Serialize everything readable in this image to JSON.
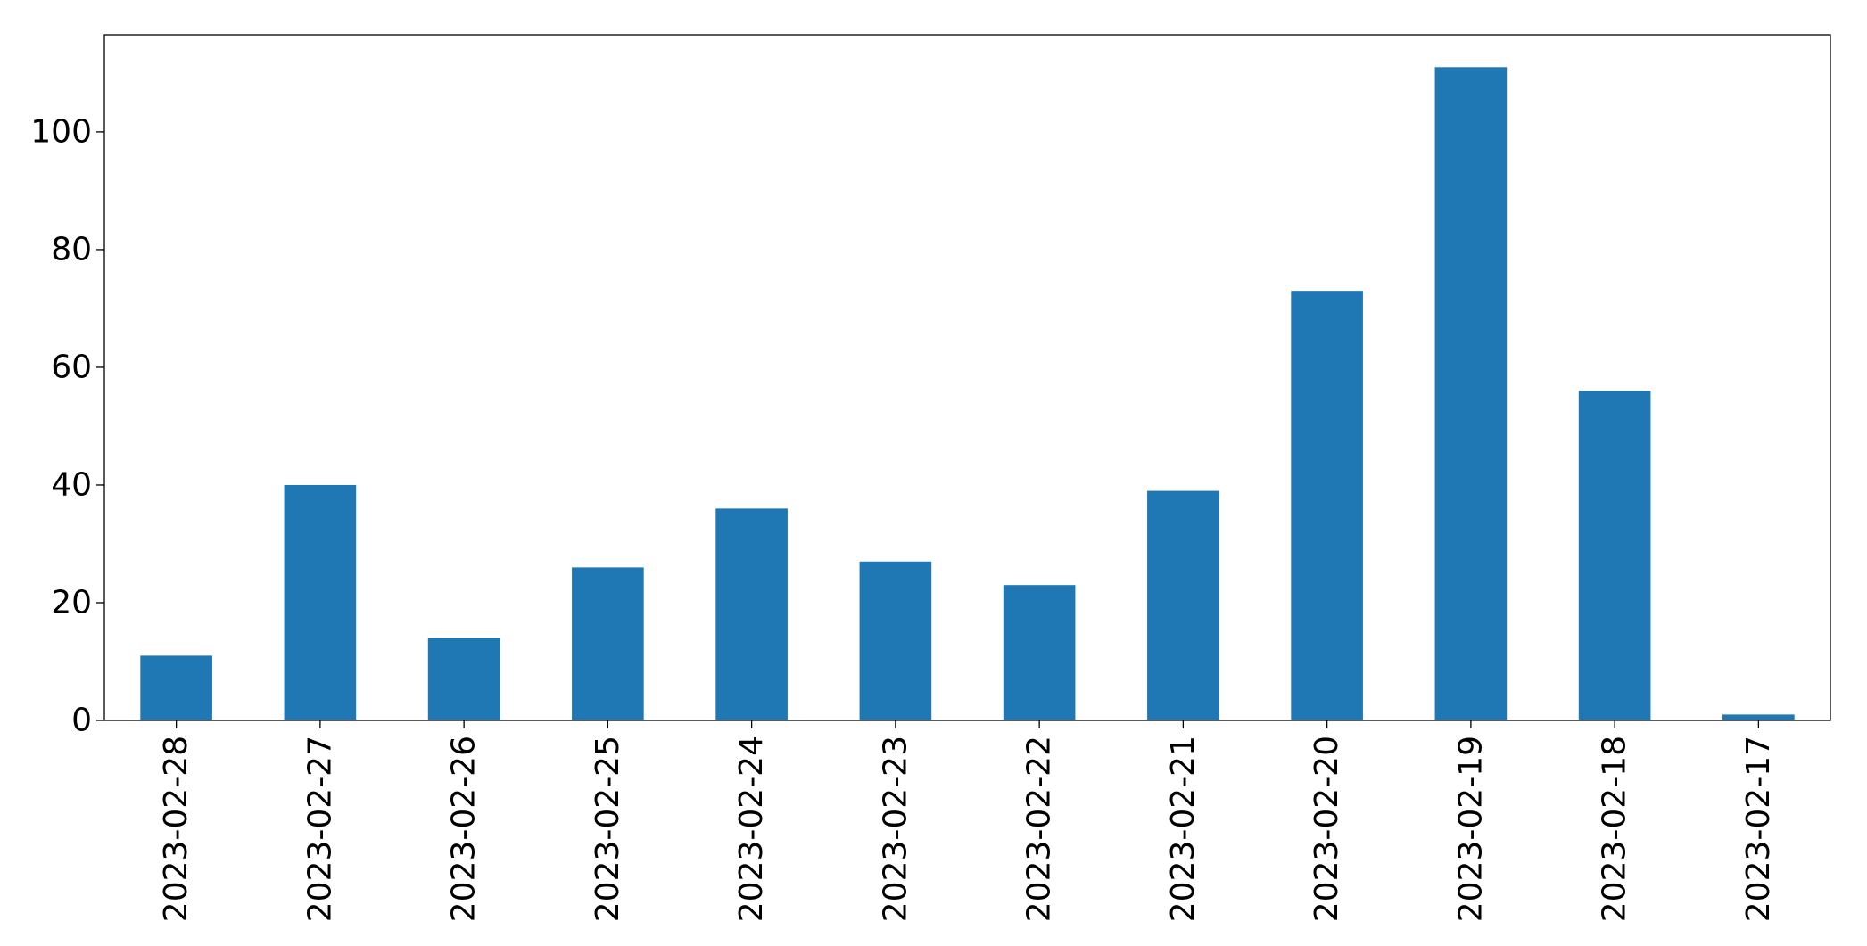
{
  "chart_data": {
    "type": "bar",
    "title": "",
    "xlabel": "",
    "ylabel": "",
    "categories": [
      "2023-02-28",
      "2023-02-27",
      "2023-02-26",
      "2023-02-25",
      "2023-02-24",
      "2023-02-23",
      "2023-02-22",
      "2023-02-21",
      "2023-02-20",
      "2023-02-19",
      "2023-02-18",
      "2023-02-17"
    ],
    "values": [
      11,
      40,
      14,
      26,
      36,
      27,
      23,
      39,
      73,
      111,
      56,
      1
    ],
    "ylim": [
      0,
      116.5
    ],
    "yticks": [
      "0",
      "20",
      "40",
      "60",
      "80",
      "100"
    ],
    "bar_color": "#1f77b4",
    "grid": false,
    "legend": "none",
    "xtick_rotation": "vertical"
  }
}
